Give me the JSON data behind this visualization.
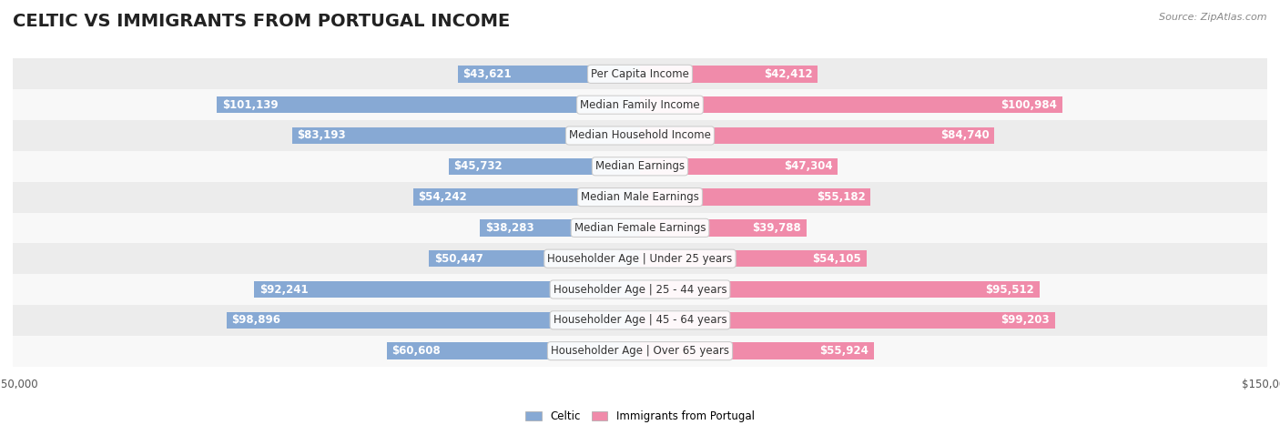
{
  "title": "CELTIC VS IMMIGRANTS FROM PORTUGAL INCOME",
  "source": "Source: ZipAtlas.com",
  "categories": [
    "Per Capita Income",
    "Median Family Income",
    "Median Household Income",
    "Median Earnings",
    "Median Male Earnings",
    "Median Female Earnings",
    "Householder Age | Under 25 years",
    "Householder Age | 25 - 44 years",
    "Householder Age | 45 - 64 years",
    "Householder Age | Over 65 years"
  ],
  "celtic_values": [
    43621,
    101139,
    83193,
    45732,
    54242,
    38283,
    50447,
    92241,
    98896,
    60608
  ],
  "portugal_values": [
    42412,
    100984,
    84740,
    47304,
    55182,
    39788,
    54105,
    95512,
    99203,
    55924
  ],
  "celtic_labels": [
    "$43,621",
    "$101,139",
    "$83,193",
    "$45,732",
    "$54,242",
    "$38,283",
    "$50,447",
    "$92,241",
    "$98,896",
    "$60,608"
  ],
  "portugal_labels": [
    "$42,412",
    "$100,984",
    "$84,740",
    "$47,304",
    "$55,182",
    "$39,788",
    "$54,105",
    "$95,512",
    "$99,203",
    "$55,924"
  ],
  "celtic_color": "#87a9d4",
  "portugal_color": "#f08baa",
  "celtic_color_dark": "#5b8ec4",
  "portugal_color_dark": "#e85f8a",
  "bar_height": 0.55,
  "max_value": 150000,
  "bg_color": "#f5f5f5",
  "row_bg_even": "#ececec",
  "row_bg_odd": "#f8f8f8",
  "legend_celtic": "Celtic",
  "legend_portugal": "Immigrants from Portugal",
  "title_fontsize": 14,
  "label_fontsize": 8.5,
  "category_fontsize": 8.5,
  "axis_fontsize": 8.5
}
